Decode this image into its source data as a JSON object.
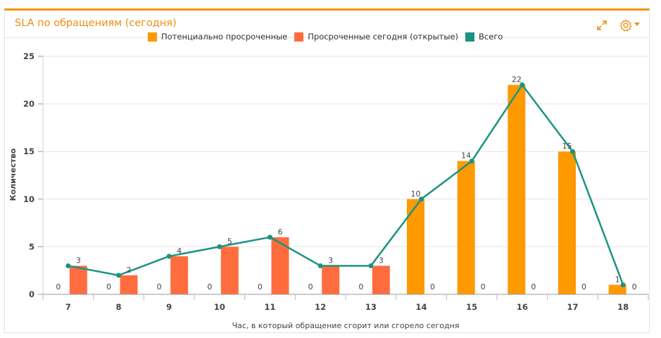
{
  "header": {
    "title": "SLA по обращениям (сегодня)",
    "expand_icon": "expand-icon",
    "settings_icon": "gear-icon"
  },
  "colors": {
    "accent": "#f29400",
    "potential": "#ff9900",
    "overdue": "#ff6d3f",
    "total": "#1a9482"
  },
  "chart_data": {
    "type": "bar",
    "title": "SLA по обращениям (сегодня)",
    "xlabel": "Час, в который обращение сгорит или сгорело сегодня",
    "ylabel": "Количество",
    "ylim": [
      0,
      25
    ],
    "yticks": [
      0,
      5,
      10,
      15,
      20,
      25
    ],
    "grid": true,
    "legend_position": "top-center",
    "categories": [
      "7",
      "8",
      "9",
      "10",
      "11",
      "12",
      "13",
      "14",
      "15",
      "16",
      "17",
      "18"
    ],
    "series": [
      {
        "name": "Потенциально просроченные",
        "kind": "bar",
        "values": [
          0,
          0,
          0,
          0,
          0,
          0,
          0,
          10,
          14,
          22,
          15,
          1
        ]
      },
      {
        "name": "Просроченные сегодня (открытые)",
        "kind": "bar",
        "values": [
          3,
          2,
          4,
          5,
          6,
          3,
          3,
          0,
          0,
          0,
          0,
          0
        ]
      },
      {
        "name": "Всего",
        "kind": "line",
        "values": [
          3,
          2,
          4,
          5,
          6,
          3,
          3,
          10,
          14,
          22,
          15,
          1
        ]
      }
    ]
  }
}
